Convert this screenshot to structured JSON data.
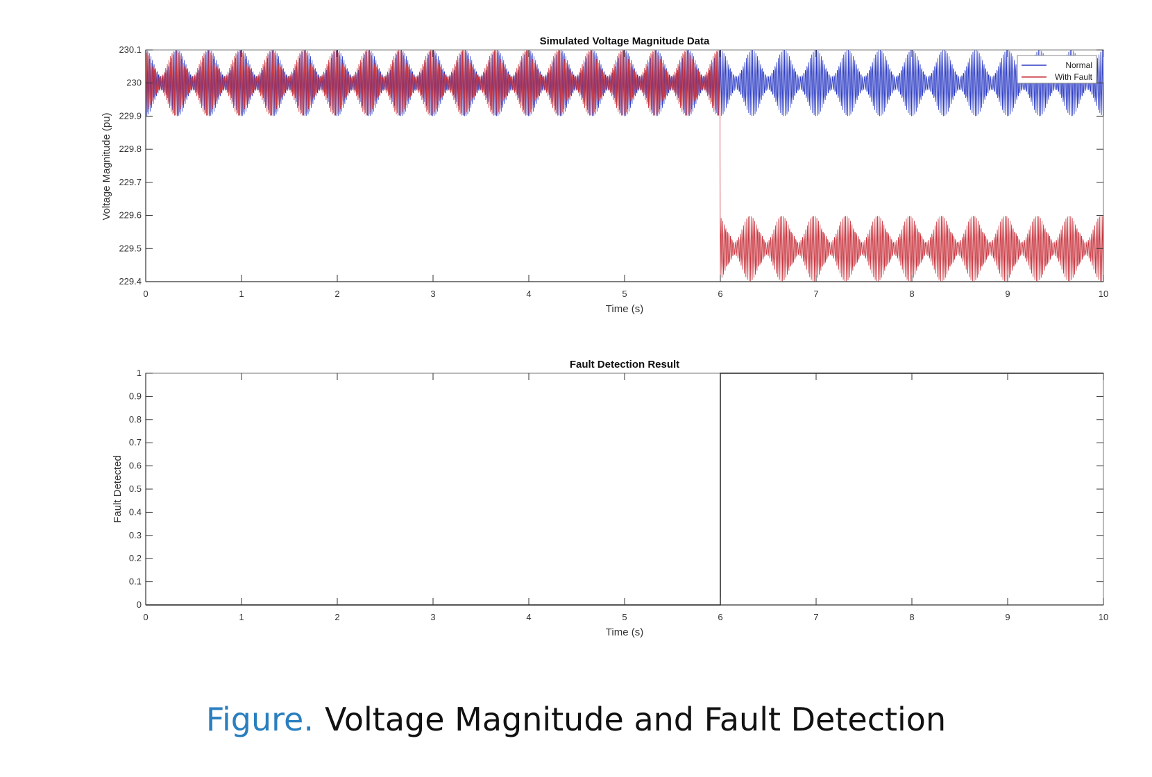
{
  "caption": {
    "prefix": "Figure.",
    "text": "Voltage Magnitude and Fault Detection"
  },
  "chart_data": [
    {
      "type": "line",
      "title": "Simulated Voltage Magnitude Data",
      "xlabel": "Time (s)",
      "ylabel": "Voltage Magnitude (pu)",
      "xlim": [
        0,
        10
      ],
      "ylim": [
        229.4,
        230.1
      ],
      "xticks": [
        0,
        1,
        2,
        3,
        4,
        5,
        6,
        7,
        8,
        9,
        10
      ],
      "yticks": [
        "229.4",
        "229.5",
        "229.6",
        "229.7",
        "229.8",
        "229.9",
        "230",
        "230.1"
      ],
      "grid": false,
      "legend_position": "top-right",
      "fault_time": 6,
      "series": [
        {
          "name": "Normal",
          "color": "#2b3bc4",
          "center": 230.0,
          "amplitude": 0.1,
          "x_range": [
            0,
            10
          ]
        },
        {
          "name": "With Fault",
          "color": "#c8323c",
          "center_before": 230.0,
          "center_after": 229.5,
          "amplitude": 0.1,
          "x_range": [
            0,
            10
          ]
        }
      ]
    },
    {
      "type": "line",
      "title": "Fault Detection Result",
      "xlabel": "Time (s)",
      "ylabel": "Fault Detected",
      "xlim": [
        0,
        10
      ],
      "ylim": [
        0,
        1
      ],
      "xticks": [
        0,
        1,
        2,
        3,
        4,
        5,
        6,
        7,
        8,
        9,
        10
      ],
      "yticks": [
        "0",
        "0.1",
        "0.2",
        "0.3",
        "0.4",
        "0.5",
        "0.6",
        "0.7",
        "0.8",
        "0.9",
        "1"
      ],
      "grid": false,
      "series": [
        {
          "color": "#222222",
          "x": [
            0,
            6,
            6,
            10
          ],
          "y": [
            0,
            0,
            1,
            1
          ]
        }
      ]
    }
  ]
}
